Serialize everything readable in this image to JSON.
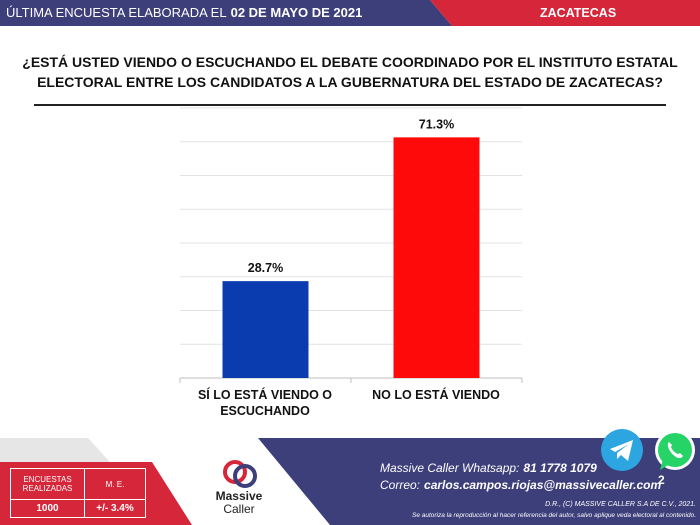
{
  "header": {
    "prefix": "ÚLTIMA ENCUESTA ELABORADA EL",
    "date": "02 DE MAYO DE 2021",
    "region": "ZACATECAS",
    "colors": {
      "navy": "#3d3f7a",
      "red": "#d6263a"
    }
  },
  "question": "¿ESTÁ USTED VIENDO O ESCUCHANDO EL DEBATE COORDINADO POR EL INSTITUTO ESTATAL ELECTORAL ENTRE LOS CANDIDATOS A LA GUBERNATURA DEL ESTADO DE ZACATECAS?",
  "chart_data": {
    "type": "bar",
    "categories": [
      "SÍ LO ESTÁ VIENDO O ESCUCHANDO",
      "NO LO ESTÁ VIENDO"
    ],
    "values": [
      28.7,
      71.3
    ],
    "value_labels": [
      "28.7%",
      "71.3%"
    ],
    "colors": [
      "#0a3cb0",
      "#ff0a0a"
    ],
    "ylim": [
      0,
      80
    ],
    "grid": true
  },
  "footer": {
    "stats": {
      "surveys_label": "ENCUESTAS REALIZADAS",
      "margin_label": "M. E.",
      "surveys_value": "1000",
      "margin_value": "+/- 3.4%"
    },
    "logo": {
      "line1": "Massive",
      "line2": "Caller",
      "icon": "massive-caller-logo"
    },
    "contact": {
      "whatsapp_label": "Massive Caller Whatsapp:",
      "whatsapp_value": "81 1778 1079",
      "email_label": "Correo:",
      "email_value": "carlos.campos.riojas@massivecaller.com"
    },
    "legal_1": "D.R., (C) MASSIVE CALLER S.A DE C.V., 2021.",
    "legal_2": "Se autoriza la reproducción al hacer referencia del autor, salvo aplique veda electoral al contenido.",
    "page_number": "2",
    "icons": [
      "telegram-icon",
      "whatsapp-icon"
    ]
  }
}
